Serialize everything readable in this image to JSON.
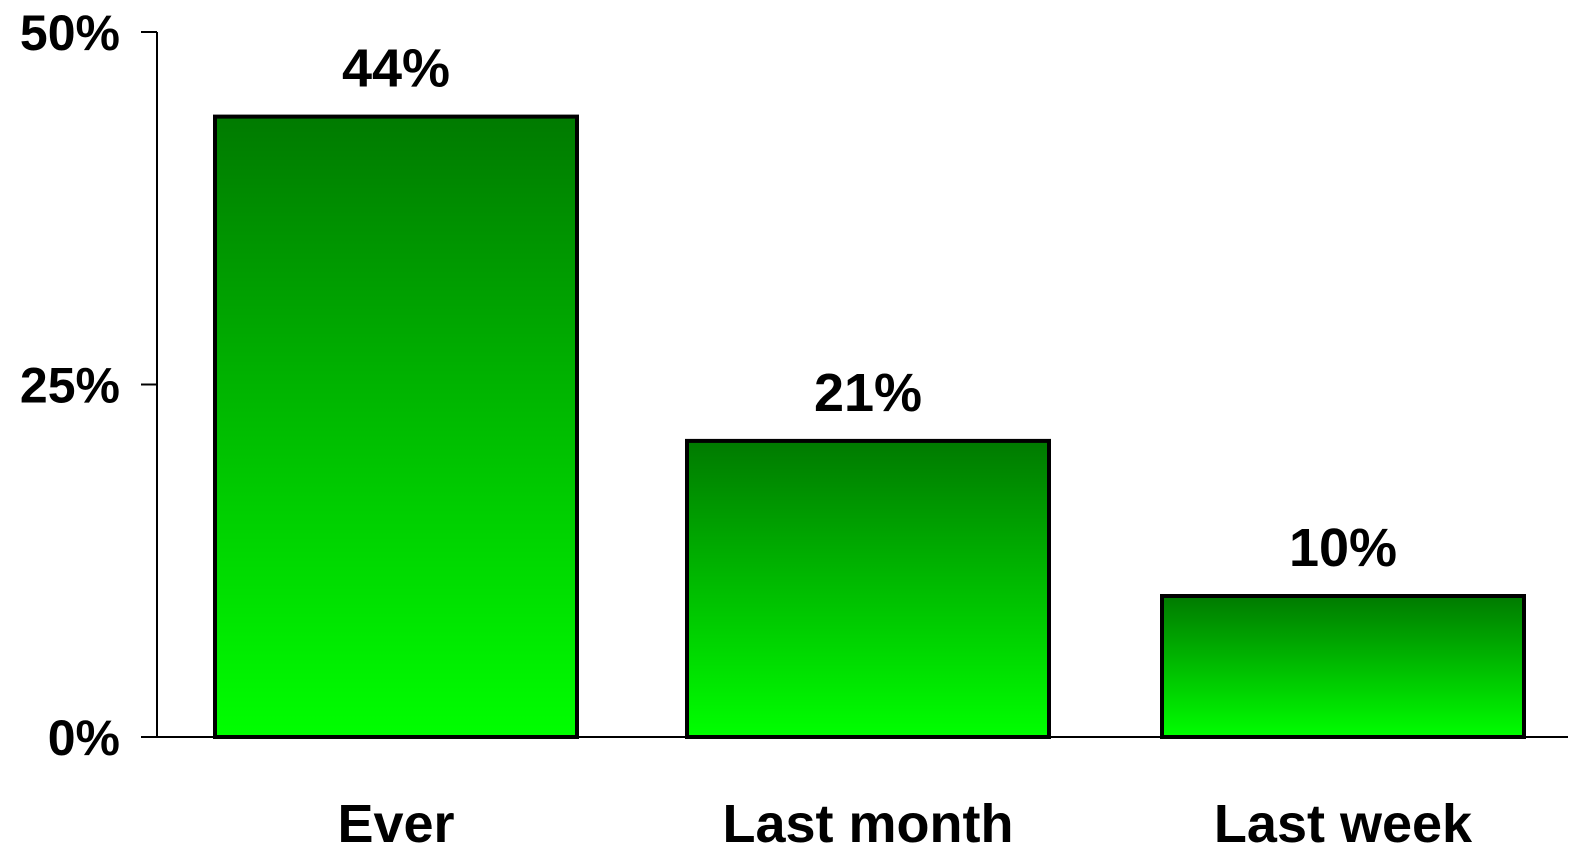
{
  "chart_data": {
    "type": "bar",
    "categories": [
      "Ever",
      "Last month",
      "Last week"
    ],
    "values": [
      44,
      21,
      10
    ],
    "data_labels": [
      "44%",
      "21%",
      "10%"
    ],
    "ylim": [
      0,
      50
    ],
    "yticks": [
      0,
      25,
      50
    ],
    "ytick_labels": [
      "0%",
      "25%",
      "50%"
    ],
    "grid": false,
    "legend": "none",
    "colors": {
      "bar_top": "#007A00",
      "bar_bottom": "#00FF00",
      "bar_stroke": "#000000",
      "axis": "#000000"
    }
  }
}
